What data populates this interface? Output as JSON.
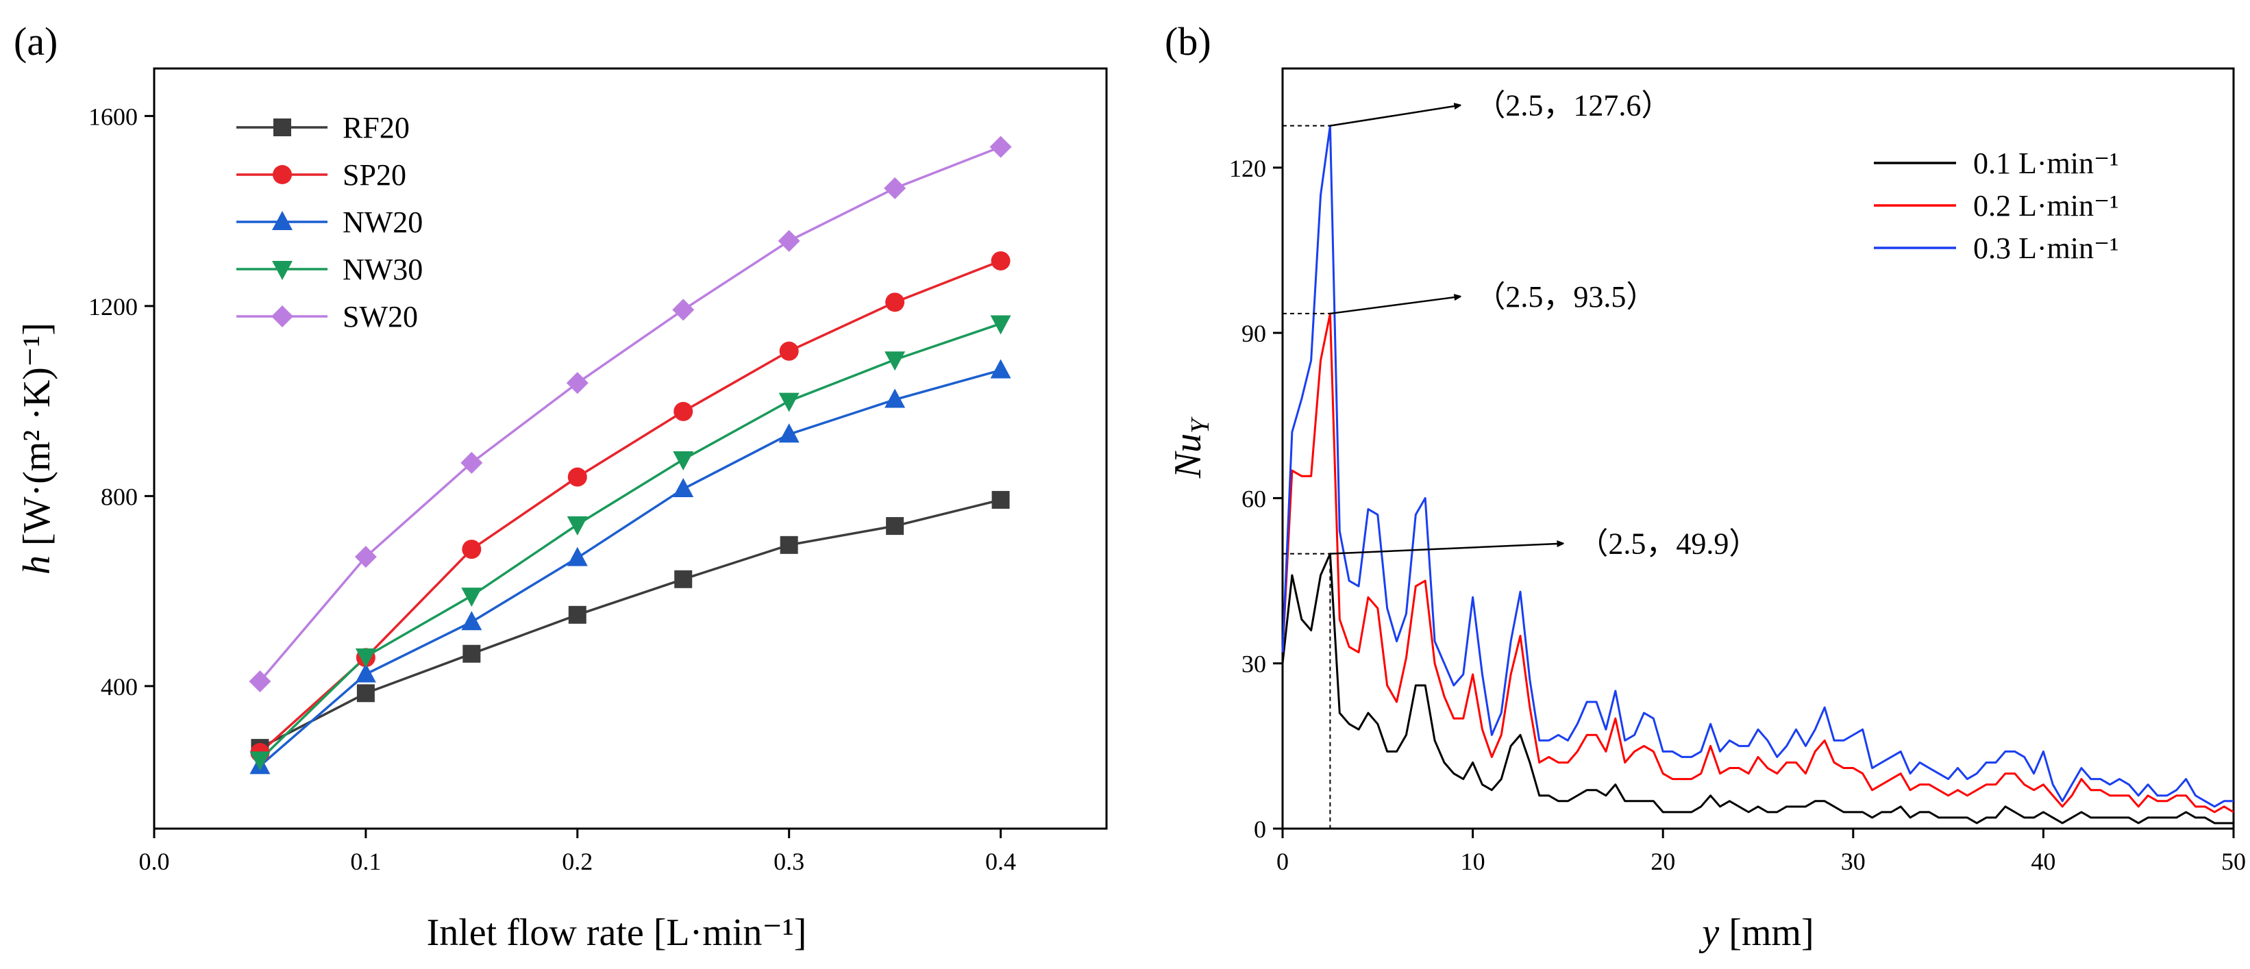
{
  "chart_data": [
    {
      "type": "line",
      "panel_label": "(a)",
      "xlabel": "Inlet flow rate [L·min⁻¹]",
      "ylabel_parts": {
        "var": "h",
        "unit": " [W·(m² ·K)⁻¹]"
      },
      "xlim": [
        0.0,
        0.45
      ],
      "ylim": [
        100,
        1700
      ],
      "xticks": [
        "0.0",
        "0.1",
        "0.2",
        "0.3",
        "0.4"
      ],
      "xtick_values": [
        0.0,
        0.1,
        0.2,
        0.3,
        0.4
      ],
      "yticks": [
        "400",
        "800",
        "1200",
        "1600"
      ],
      "ytick_values": [
        400,
        800,
        1200,
        1600
      ],
      "legend_position": "top-left",
      "x": [
        0.05,
        0.1,
        0.15,
        0.2,
        0.25,
        0.3,
        0.35,
        0.4
      ],
      "series": [
        {
          "name": "RF20",
          "color": "#3c3c3c",
          "marker": "square",
          "values": [
            270,
            385,
            468,
            550,
            625,
            697,
            737,
            792
          ]
        },
        {
          "name": "SP20",
          "color": "#e8242b",
          "marker": "circle",
          "values": [
            260,
            460,
            688,
            840,
            978,
            1105,
            1208,
            1295
          ]
        },
        {
          "name": "NW20",
          "color": "#1c5fcf",
          "marker": "triangle-up",
          "values": [
            232,
            425,
            535,
            670,
            815,
            930,
            1003,
            1065
          ]
        },
        {
          "name": "NW30",
          "color": "#1a9a5a",
          "marker": "triangle-down",
          "values": [
            245,
            462,
            590,
            740,
            877,
            1000,
            1087,
            1163
          ]
        },
        {
          "name": "SW20",
          "color": "#bb7ee0",
          "marker": "diamond",
          "values": [
            410,
            672,
            870,
            1038,
            1192,
            1337,
            1448,
            1535
          ]
        }
      ]
    },
    {
      "type": "line",
      "panel_label": "(b)",
      "xlabel_parts": {
        "var": "y",
        "unit": " [mm]"
      },
      "ylabel_parts": {
        "var": "Nu",
        "sub": "Y"
      },
      "xlim": [
        0,
        50
      ],
      "ylim": [
        0,
        138
      ],
      "xticks": [
        "0",
        "10",
        "20",
        "30",
        "40",
        "50"
      ],
      "xtick_values": [
        0,
        10,
        20,
        30,
        40,
        50
      ],
      "yticks": [
        "0",
        "30",
        "60",
        "90",
        "120"
      ],
      "ytick_values": [
        0,
        30,
        60,
        90,
        120
      ],
      "legend_position": "top-right",
      "x": [
        0,
        0.5,
        1,
        1.5,
        2,
        2.5,
        3,
        3.5,
        4,
        4.5,
        5,
        5.5,
        6,
        6.5,
        7,
        7.5,
        8,
        8.5,
        9,
        9.5,
        10,
        10.5,
        11,
        11.5,
        12,
        12.5,
        13,
        13.5,
        14,
        14.5,
        15,
        15.5,
        16,
        16.5,
        17,
        17.5,
        18,
        18.5,
        19,
        19.5,
        20,
        20.5,
        21,
        21.5,
        22,
        22.5,
        23,
        23.5,
        24,
        24.5,
        25,
        25.5,
        26,
        26.5,
        27,
        27.5,
        28,
        28.5,
        29,
        29.5,
        30,
        30.5,
        31,
        31.5,
        32,
        32.5,
        33,
        33.5,
        34,
        34.5,
        35,
        35.5,
        36,
        36.5,
        37,
        37.5,
        38,
        38.5,
        39,
        39.5,
        40,
        40.5,
        41,
        41.5,
        42,
        42.5,
        43,
        43.5,
        44,
        44.5,
        45,
        45.5,
        46,
        46.5,
        47,
        47.5,
        48,
        48.5,
        49,
        49.5,
        50
      ],
      "series": [
        {
          "name": "0.1 L·min⁻¹",
          "color": "#000000",
          "values": [
            30,
            46,
            38,
            36,
            46,
            49.9,
            21,
            19,
            18,
            21,
            19,
            14,
            14,
            17,
            26,
            26,
            16,
            12,
            10,
            9,
            12,
            8,
            7,
            9,
            15,
            17,
            12,
            6,
            6,
            5,
            5,
            6,
            7,
            7,
            6,
            8,
            5,
            5,
            5,
            5,
            3,
            3,
            3,
            3,
            4,
            6,
            4,
            5,
            4,
            3,
            4,
            3,
            3,
            4,
            4,
            4,
            5,
            5,
            4,
            3,
            3,
            3,
            2,
            3,
            3,
            4,
            2,
            3,
            3,
            2,
            2,
            2,
            2,
            1,
            2,
            2,
            4,
            3,
            2,
            2,
            3,
            2,
            1,
            2,
            3,
            2,
            2,
            2,
            2,
            2,
            1,
            2,
            2,
            2,
            2,
            3,
            2,
            2,
            1,
            1,
            1
          ]
        },
        {
          "name": "0.2 L·min⁻¹",
          "color": "#ff0000",
          "values": [
            32,
            65,
            64,
            64,
            85,
            93.5,
            38,
            33,
            32,
            42,
            40,
            26,
            23,
            31,
            44,
            45,
            30,
            24,
            20,
            20,
            28,
            18,
            13,
            17,
            28,
            35,
            22,
            12,
            13,
            12,
            12,
            14,
            17,
            17,
            14,
            20,
            12,
            14,
            15,
            14,
            10,
            9,
            9,
            9,
            10,
            15,
            10,
            11,
            11,
            10,
            13,
            11,
            10,
            12,
            12,
            10,
            14,
            16,
            12,
            11,
            11,
            10,
            7,
            8,
            9,
            10,
            7,
            8,
            8,
            7,
            6,
            7,
            6,
            7,
            8,
            8,
            10,
            10,
            8,
            7,
            8,
            6,
            4,
            6,
            9,
            7,
            7,
            6,
            6,
            6,
            4,
            6,
            5,
            5,
            6,
            6,
            4,
            4,
            3,
            4,
            3
          ]
        },
        {
          "name": "0.3 L·min⁻¹",
          "color": "#1a3ff0",
          "values": [
            32,
            72,
            78,
            85,
            115,
            127.6,
            54,
            45,
            44,
            58,
            57,
            40,
            34,
            39,
            57,
            60,
            34,
            30,
            26,
            28,
            42,
            28,
            17,
            21,
            34,
            43,
            27,
            16,
            16,
            17,
            16,
            19,
            23,
            23,
            18,
            25,
            16,
            17,
            21,
            20,
            14,
            14,
            13,
            13,
            14,
            19,
            14,
            16,
            15,
            15,
            18,
            16,
            13,
            15,
            18,
            15,
            18,
            22,
            16,
            16,
            17,
            18,
            11,
            12,
            13,
            14,
            10,
            12,
            11,
            10,
            9,
            11,
            9,
            10,
            12,
            12,
            14,
            14,
            13,
            10,
            14,
            8,
            5,
            8,
            11,
            9,
            9,
            8,
            9,
            8,
            6,
            8,
            6,
            6,
            7,
            9,
            6,
            5,
            4,
            5,
            5
          ]
        }
      ],
      "annotations": [
        {
          "text": "（2.5，127.6）",
          "x": 2.5,
          "y": 127.6
        },
        {
          "text": "（2.5，93.5）",
          "x": 2.5,
          "y": 93.5
        },
        {
          "text": "（2.5，49.9）",
          "x": 2.5,
          "y": 49.9
        }
      ]
    }
  ]
}
